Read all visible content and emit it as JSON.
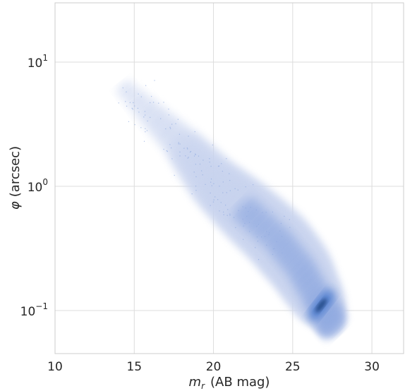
{
  "chart_data": {
    "type": "heatmap",
    "subtype": "2d-histogram-density",
    "title": "",
    "xlabel": {
      "symbol": "m",
      "subscript": "r",
      "unit": "(AB mag)"
    },
    "ylabel": {
      "symbol": "φ",
      "unit": "(arcsec)"
    },
    "x_scale": "linear",
    "y_scale": "log",
    "xlim": [
      10,
      32
    ],
    "ylim": [
      0.045,
      30
    ],
    "x_ticks": [
      {
        "value": 10,
        "label": "10"
      },
      {
        "value": 15,
        "label": "15"
      },
      {
        "value": 20,
        "label": "20"
      },
      {
        "value": 25,
        "label": "25"
      },
      {
        "value": 30,
        "label": "30"
      }
    ],
    "y_ticks": [
      {
        "value": 0.1,
        "base": "10",
        "exp": "−1"
      },
      {
        "value": 1,
        "base": "10",
        "exp": "0"
      },
      {
        "value": 10,
        "base": "10",
        "exp": "1"
      }
    ],
    "grid": true,
    "colors": {
      "light": "#c8d3ee",
      "mid": "#8fa9e0",
      "dense": "#3a6fc9",
      "peak": "#1f3f78",
      "grid": "#dcdcdc"
    },
    "density_ridge": [
      {
        "x": 14.5,
        "y": 6.0
      },
      {
        "x": 18,
        "y": 2.2
      },
      {
        "x": 20,
        "y": 1.1
      },
      {
        "x": 22,
        "y": 0.65
      },
      {
        "x": 24,
        "y": 0.38
      },
      {
        "x": 25.5,
        "y": 0.22
      },
      {
        "x": 26.5,
        "y": 0.13
      },
      {
        "x": 27.2,
        "y": 0.095
      },
      {
        "x": 27.6,
        "y": 0.07
      }
    ],
    "density_peak": {
      "x": 26.8,
      "y": 0.11
    },
    "bounds": {
      "x_min": 14,
      "x_max": 28.5,
      "y_min": 0.06,
      "y_max": 22
    }
  }
}
